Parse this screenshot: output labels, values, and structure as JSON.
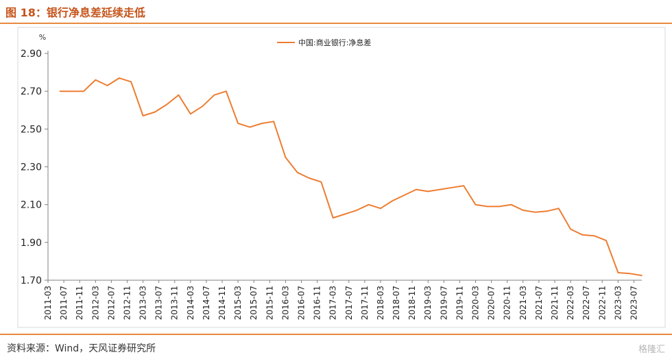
{
  "header": {
    "title": "图 18：银行净息差延续走低"
  },
  "footer": {
    "source": "资料来源：Wind，天风证券研究所",
    "logo": "格隆汇"
  },
  "colors": {
    "accent": "#e8893f",
    "title": "#c6541a",
    "line": "#ed7d31"
  },
  "chart_data": {
    "type": "line",
    "title": "",
    "ylabel": "%",
    "xlabel": "",
    "ylim": [
      1.7,
      2.9
    ],
    "yticks": [
      "2.90",
      "2.70",
      "2.50",
      "2.30",
      "2.10",
      "1.90",
      "1.70"
    ],
    "ytick_values": [
      2.9,
      2.7,
      2.5,
      2.3,
      2.1,
      1.9,
      1.7
    ],
    "grid": false,
    "legend": "top-center",
    "categories": [
      "2011-03",
      "2011-07",
      "2011-11",
      "2012-03",
      "2012-07",
      "2012-11",
      "2013-03",
      "2013-07",
      "2013-11",
      "2014-03",
      "2014-07",
      "2014-11",
      "2015-03",
      "2015-07",
      "2015-11",
      "2016-03",
      "2016-07",
      "2016-11",
      "2017-03",
      "2017-07",
      "2017-11",
      "2018-03",
      "2018-07",
      "2018-11",
      "2019-03",
      "2019-07",
      "2019-11",
      "2020-03",
      "2020-07",
      "2020-11",
      "2021-03",
      "2021-07",
      "2021-11",
      "2022-03",
      "2022-07",
      "2022-11",
      "2023-03",
      "2023-07"
    ],
    "series": [
      {
        "name": "中国:商业银行:净息差",
        "x": [
          "2011-06",
          "2011-09",
          "2011-12",
          "2012-03",
          "2012-06",
          "2012-09",
          "2012-12",
          "2013-03",
          "2013-06",
          "2013-09",
          "2013-12",
          "2014-03",
          "2014-06",
          "2014-09",
          "2014-12",
          "2015-03",
          "2015-06",
          "2015-09",
          "2015-12",
          "2016-03",
          "2016-06",
          "2016-09",
          "2016-12",
          "2017-03",
          "2017-06",
          "2017-09",
          "2017-12",
          "2018-03",
          "2018-06",
          "2018-09",
          "2018-12",
          "2019-03",
          "2019-06",
          "2019-09",
          "2019-12",
          "2020-03",
          "2020-06",
          "2020-09",
          "2020-12",
          "2021-03",
          "2021-06",
          "2021-09",
          "2021-12",
          "2022-03",
          "2022-06",
          "2022-09",
          "2022-12",
          "2023-03",
          "2023-06",
          "2023-09"
        ],
        "values": [
          2.7,
          2.7,
          2.7,
          2.76,
          2.73,
          2.77,
          2.75,
          2.57,
          2.59,
          2.63,
          2.68,
          2.58,
          2.62,
          2.68,
          2.7,
          2.53,
          2.51,
          2.53,
          2.54,
          2.35,
          2.27,
          2.24,
          2.22,
          2.03,
          2.05,
          2.07,
          2.1,
          2.08,
          2.12,
          2.15,
          2.18,
          2.17,
          2.18,
          2.19,
          2.2,
          2.1,
          2.09,
          2.09,
          2.1,
          2.07,
          2.06,
          2.065,
          2.08,
          1.97,
          1.94,
          1.935,
          1.91,
          1.74,
          1.735,
          1.725
        ]
      }
    ]
  }
}
